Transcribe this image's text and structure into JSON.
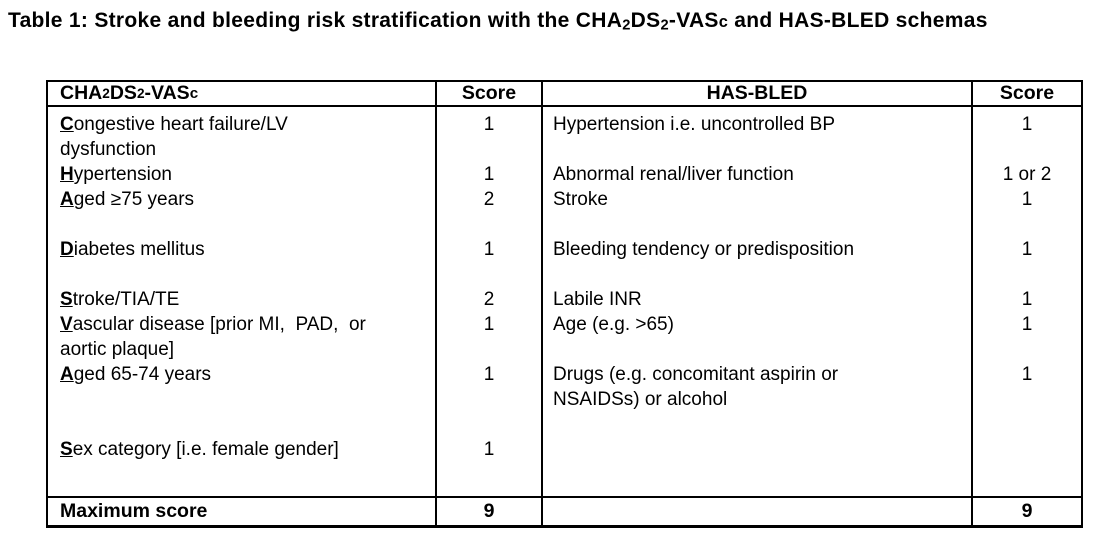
{
  "title_parts": [
    {
      "t": "Table 1: Stroke and bleeding risk stratification with the CHA"
    },
    {
      "t": "2",
      "style": "sub"
    },
    {
      "t": "DS"
    },
    {
      "t": "2",
      "style": "sub"
    },
    {
      "t": "-VAS"
    },
    {
      "t": "c",
      "style": "smc"
    },
    {
      "t": " and HAS-BLED schemas"
    }
  ],
  "table": {
    "header": {
      "cha_parts": [
        {
          "t": "CHA"
        },
        {
          "t": "2",
          "style": "sub"
        },
        {
          "t": "DS"
        },
        {
          "t": "2",
          "style": "sub"
        },
        {
          "t": "-VAS"
        },
        {
          "t": "c",
          "style": "smc"
        }
      ],
      "score1": "Score",
      "has": "HAS-BLED",
      "score2": "Score"
    },
    "lines": [
      {
        "cha": "Congestive heart failure/LV",
        "u": true,
        "s1": "1",
        "has": "Hypertension i.e. uncontrolled BP",
        "s2": "1"
      },
      {
        "cha": "dysfunction",
        "u": false,
        "s1": "",
        "has": "",
        "s2": ""
      },
      {
        "cha": "Hypertension",
        "u": true,
        "s1": "1",
        "has": "Abnormal renal/liver function",
        "s2": "1 or 2"
      },
      {
        "cha": "Aged ≥75 years",
        "u": true,
        "s1": "2",
        "has": "Stroke",
        "s2": "1"
      },
      {
        "cha": "",
        "u": false,
        "s1": "",
        "has": "",
        "s2": ""
      },
      {
        "cha": "Diabetes mellitus",
        "u": true,
        "s1": "1",
        "has": "Bleeding tendency or predisposition",
        "s2": "1"
      },
      {
        "cha": "",
        "u": false,
        "s1": "",
        "has": "",
        "s2": ""
      },
      {
        "cha": "Stroke/TIA/TE",
        "u": true,
        "s1": "2",
        "has": "Labile INR",
        "s2": "1"
      },
      {
        "cha": "Vascular disease [prior MI,  PAD,  or",
        "u": true,
        "s1": "1",
        "has": "Age (e.g. >65)",
        "s2": "1"
      },
      {
        "cha": "aortic plaque]",
        "u": false,
        "s1": "",
        "has": "",
        "s2": ""
      },
      {
        "cha": "Aged 65-74 years",
        "u": true,
        "s1": "1",
        "has": "Drugs (e.g. concomitant aspirin or",
        "s2": "1"
      },
      {
        "cha": "",
        "u": false,
        "s1": "",
        "has": "NSAIDSs) or alcohol",
        "s2": ""
      },
      {
        "cha": "",
        "u": false,
        "s1": "",
        "has": "",
        "s2": ""
      },
      {
        "cha": "Sex category [i.e. female gender]",
        "u": true,
        "s1": "1",
        "has": "",
        "s2": ""
      },
      {
        "cha": "",
        "u": false,
        "s1": "",
        "has": "",
        "s2": ""
      }
    ],
    "footer": {
      "label": "Maximum score",
      "s1": "9",
      "has": "",
      "s2": "9"
    }
  },
  "colors": {
    "text": "#000000",
    "border": "#000000",
    "background": "#ffffff"
  }
}
